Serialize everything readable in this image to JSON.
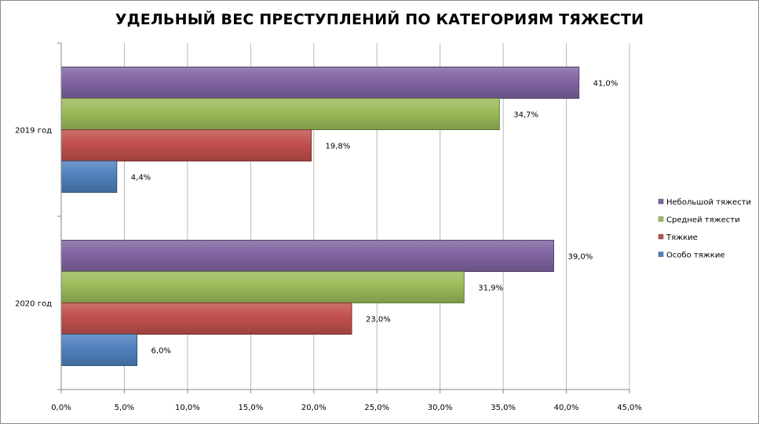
{
  "chart_data": {
    "type": "bar",
    "orientation": "horizontal",
    "title": "УДЕЛЬНЫЙ ВЕС ПРЕСТУПЛЕНИЙ ПО КАТЕГОРИЯМ ТЯЖЕСТИ",
    "categories": [
      "2019 год",
      "2020 год"
    ],
    "series": [
      {
        "name": "Небольшой тяжести",
        "values": [
          41.0,
          39.0
        ],
        "labels": [
          "41,0%",
          "39,0%"
        ],
        "color": "#8064a2"
      },
      {
        "name": "Средней тяжести",
        "values": [
          34.7,
          31.9
        ],
        "labels": [
          "34,7%",
          "31,9%"
        ],
        "color": "#9bbb59"
      },
      {
        "name": "Тяжкие",
        "values": [
          19.8,
          23.0
        ],
        "labels": [
          "19,8%",
          "23,0%"
        ],
        "color": "#c0504d"
      },
      {
        "name": "Особо тяжкие",
        "values": [
          4.4,
          6.0
        ],
        "labels": [
          "4,4%",
          "6,0%"
        ],
        "color": "#4f81bd"
      }
    ],
    "xlim": [
      0,
      45
    ],
    "x_ticks": [
      0,
      5,
      10,
      15,
      20,
      25,
      30,
      35,
      40,
      45
    ],
    "x_tick_labels": [
      "0,0%",
      "5,0%",
      "10,0%",
      "15,0%",
      "20,0%",
      "25,0%",
      "30,0%",
      "35,0%",
      "40,0%",
      "45,0%"
    ],
    "xlabel": "",
    "ylabel": "",
    "grid": true,
    "legend_position": "right"
  }
}
